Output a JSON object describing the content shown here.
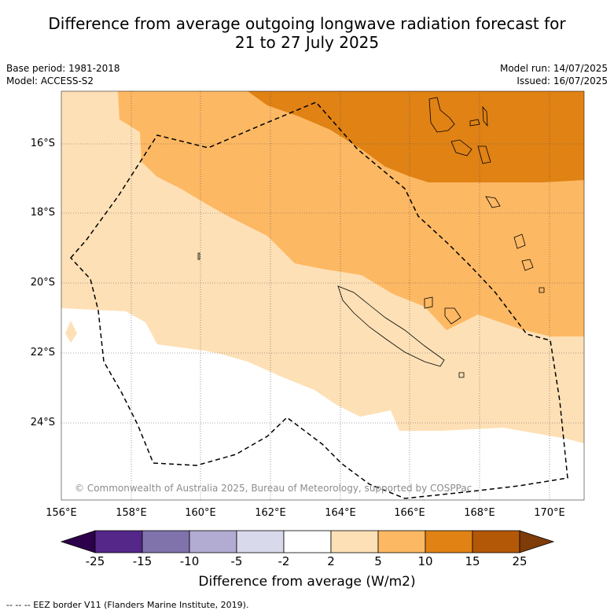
{
  "title": {
    "line1": "Difference from average outgoing longwave radiation forecast for",
    "line2": "21 to 27 July 2025"
  },
  "meta_left": {
    "base_period": "Base period: 1981-2018",
    "model": "Model: ACCESS-S2"
  },
  "meta_right": {
    "model_run": "Model run: 14/07/2025",
    "issued": "Issued: 16/07/2025"
  },
  "map": {
    "lat_labels": [
      "16°S",
      "18°S",
      "20°S",
      "22°S",
      "24°S"
    ],
    "lon_labels": [
      "156°E",
      "158°E",
      "160°E",
      "162°E",
      "164°E",
      "166°E",
      "168°E",
      "170°E"
    ],
    "credit": "© Commonwealth of Australia 2025, Bureau of Meteorology, supported by COSPPac"
  },
  "colorbar": {
    "ticks": [
      "-25",
      "-15",
      "-10",
      "-5",
      "-2",
      "2",
      "5",
      "10",
      "15",
      "25"
    ],
    "colors": [
      "#2d004b",
      "#542788",
      "#8073ac",
      "#b2abd2",
      "#d8daeb",
      "#ffffff",
      "#fee0b6",
      "#fdb863",
      "#e08214",
      "#b35806",
      "#7f3b08"
    ],
    "label": "Difference from average (W/m2)"
  },
  "footer": "--  --  -- EEZ border V11 (Flanders Marine Institute, 2019)."
}
